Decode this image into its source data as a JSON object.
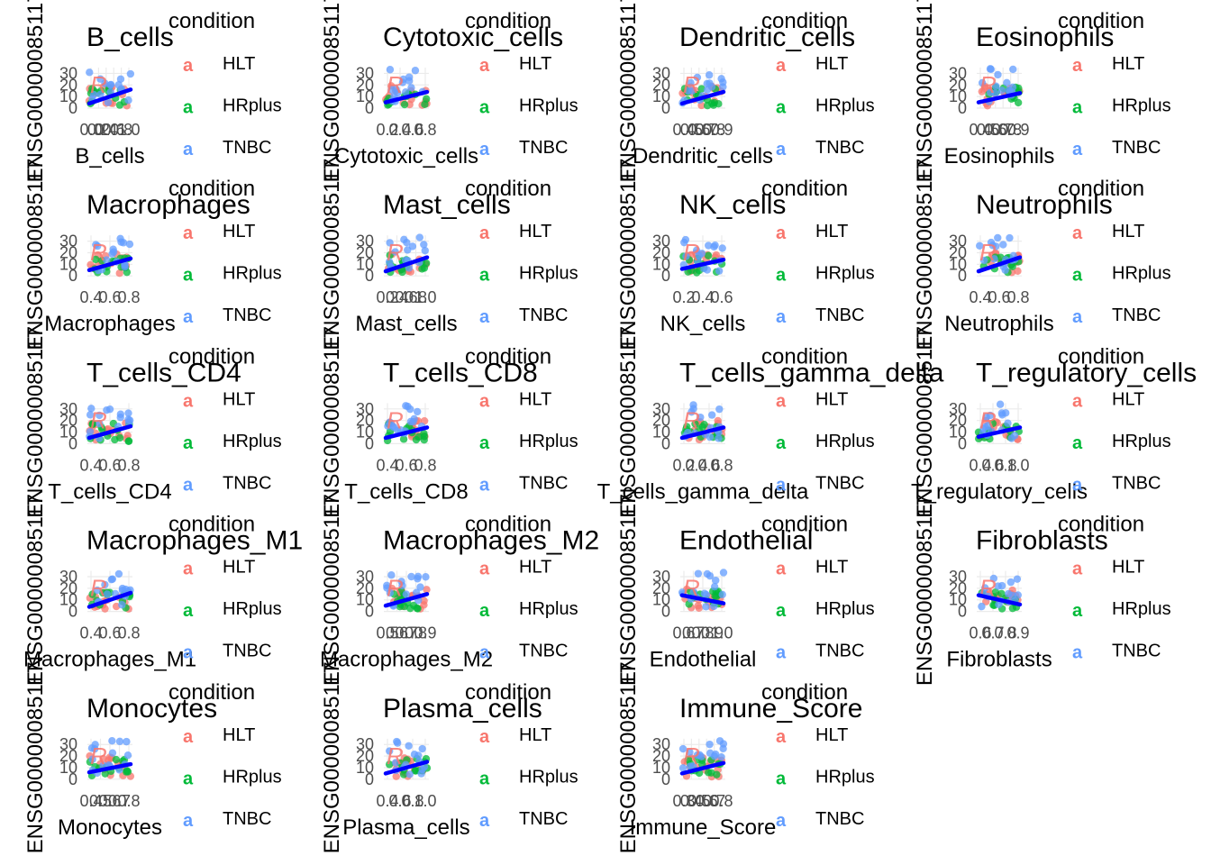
{
  "figure": {
    "colors": {
      "HLT": "#F8766D",
      "HRplus": "#00BA38",
      "TNBC": "#619CFF",
      "fit": "#0000FF",
      "grid": "#EBEBEB",
      "tick": "#4D4D4D"
    },
    "y_axis_label": "ENSG00000085117",
    "legend": {
      "title": "condition",
      "key_glyph": "a",
      "entries": [
        "HLT",
        "HRplus",
        "TNBC"
      ]
    }
  },
  "chart_data": [
    {
      "type": "scatter",
      "title": "B_cells",
      "xlabel": "B_cells",
      "ylabel": "ENSG00000085117",
      "x_tick_labels": [
        "0.0",
        "0.2",
        "0.4",
        "0.6",
        "0.8",
        "1.0"
      ],
      "ylim": [
        0,
        35
      ],
      "y_ticks": [
        0,
        10,
        20,
        30
      ],
      "fit": [
        4,
        16
      ]
    },
    {
      "type": "scatter",
      "title": "Cytotoxic_cells",
      "xlabel": "Cytotoxic_cells",
      "ylabel": "ENSG00000085117",
      "x_tick_labels": [
        "0.2",
        "0.4",
        "0.6",
        "0.8"
      ],
      "ylim": [
        0,
        35
      ],
      "y_ticks": [
        0,
        10,
        20,
        30
      ],
      "fit": [
        5,
        14
      ]
    },
    {
      "type": "scatter",
      "title": "Dendritic_cells",
      "xlabel": "Dendritic_cells",
      "ylabel": "ENSG00000085117",
      "x_tick_labels": [
        "0.4",
        "0.5",
        "0.6",
        "0.7",
        "0.8",
        "0.9"
      ],
      "ylim": [
        0,
        35
      ],
      "y_ticks": [
        0,
        10,
        20,
        30
      ],
      "fit": [
        4,
        14
      ]
    },
    {
      "type": "scatter",
      "title": "Eosinophils",
      "xlabel": "Eosinophils",
      "ylabel": "ENSG00000085117",
      "x_tick_labels": [
        "0.4",
        "0.5",
        "0.6",
        "0.7",
        "0.8",
        "0.9"
      ],
      "ylim": [
        0,
        35
      ],
      "y_ticks": [
        0,
        10,
        20,
        30
      ],
      "fit": [
        5,
        13
      ]
    },
    {
      "type": "scatter",
      "title": "Macrophages",
      "xlabel": "Macrophages",
      "ylabel": "ENSG00000085117",
      "x_tick_labels": [
        "0.4",
        "0.6",
        "0.8"
      ],
      "ylim": [
        0,
        35
      ],
      "y_ticks": [
        0,
        10,
        20,
        30
      ],
      "fit": [
        5,
        15
      ]
    },
    {
      "type": "scatter",
      "title": "Mast_cells",
      "xlabel": "Mast_cells",
      "ylabel": "ENSG00000085117",
      "x_tick_labels": [
        "0.2",
        "0.4",
        "0.6",
        "0.8",
        "1.0"
      ],
      "ylim": [
        0,
        35
      ],
      "y_ticks": [
        0,
        10,
        20,
        30
      ],
      "fit": [
        4,
        16
      ]
    },
    {
      "type": "scatter",
      "title": "NK_cells",
      "xlabel": "NK_cells",
      "ylabel": "ENSG00000085117",
      "x_tick_labels": [
        "0.2",
        "0.4",
        "0.6"
      ],
      "ylim": [
        0,
        35
      ],
      "y_ticks": [
        0,
        10,
        20,
        30
      ],
      "fit": [
        6,
        14
      ]
    },
    {
      "type": "scatter",
      "title": "Neutrophils",
      "xlabel": "Neutrophils",
      "ylabel": "ENSG00000085117",
      "x_tick_labels": [
        "0.4",
        "0.6",
        "0.8"
      ],
      "ylim": [
        0,
        35
      ],
      "y_ticks": [
        0,
        10,
        20,
        30
      ],
      "fit": [
        4,
        16
      ]
    },
    {
      "type": "scatter",
      "title": "T_cells_CD4",
      "xlabel": "T_cells_CD4",
      "ylabel": "ENSG00000085117",
      "x_tick_labels": [
        "0.4",
        "0.6",
        "0.8"
      ],
      "ylim": [
        0,
        35
      ],
      "y_ticks": [
        0,
        10,
        20,
        30
      ],
      "fit": [
        5,
        15
      ]
    },
    {
      "type": "scatter",
      "title": "T_cells_CD8",
      "xlabel": "T_cells_CD8",
      "ylabel": "ENSG00000085117",
      "x_tick_labels": [
        "0.4",
        "0.6",
        "0.8"
      ],
      "ylim": [
        0,
        35
      ],
      "y_ticks": [
        0,
        10,
        20,
        30
      ],
      "fit": [
        5,
        14
      ]
    },
    {
      "type": "scatter",
      "title": "T_cells_gamma_delta",
      "xlabel": "T_cells_gamma_delta",
      "ylabel": "ENSG00000085117",
      "x_tick_labels": [
        "0.2",
        "0.4",
        "0.6",
        "0.8"
      ],
      "ylim": [
        0,
        35
      ],
      "y_ticks": [
        0,
        10,
        20,
        30
      ],
      "fit": [
        5,
        14
      ]
    },
    {
      "type": "scatter",
      "title": "T_regulatory_cells",
      "xlabel": "T_regulatory_cells",
      "ylabel": "ENSG00000085117",
      "x_tick_labels": [
        "0.4",
        "0.6",
        "0.8",
        "1.0"
      ],
      "ylim": [
        0,
        35
      ],
      "y_ticks": [
        0,
        10,
        20,
        30
      ],
      "fit": [
        6,
        14
      ]
    },
    {
      "type": "scatter",
      "title": "Macrophages_M1",
      "xlabel": "Macrophages_M1",
      "ylabel": "ENSG00000085117",
      "x_tick_labels": [
        "0.4",
        "0.6",
        "0.8"
      ],
      "ylim": [
        0,
        35
      ],
      "y_ticks": [
        0,
        10,
        20,
        30
      ],
      "fit": [
        4,
        16
      ]
    },
    {
      "type": "scatter",
      "title": "Macrophages_M2",
      "xlabel": "Macrophages_M2",
      "ylabel": "ENSG00000085117",
      "x_tick_labels": [
        "0.5",
        "0.6",
        "0.7",
        "0.8",
        "0.9"
      ],
      "ylim": [
        0,
        35
      ],
      "y_ticks": [
        0,
        10,
        20,
        30
      ],
      "fit": [
        5,
        15
      ]
    },
    {
      "type": "scatter",
      "title": "Endothelial",
      "xlabel": "Endothelial",
      "ylabel": "ENSG00000085117",
      "x_tick_labels": [
        "0.6",
        "0.7",
        "0.8",
        "0.9",
        "1.0"
      ],
      "ylim": [
        0,
        35
      ],
      "y_ticks": [
        0,
        10,
        20,
        30
      ],
      "fit": [
        14,
        7
      ]
    },
    {
      "type": "scatter",
      "title": "Fibroblasts",
      "xlabel": "Fibroblasts",
      "ylabel": "ENSG00000085117",
      "x_tick_labels": [
        "0.6",
        "0.7",
        "0.8",
        "0.9"
      ],
      "ylim": [
        0,
        35
      ],
      "y_ticks": [
        0,
        10,
        20,
        30
      ],
      "fit": [
        14,
        6
      ]
    },
    {
      "type": "scatter",
      "title": "Monocytes",
      "xlabel": "Monocytes",
      "ylabel": "ENSG00000085117",
      "x_tick_labels": [
        "0.4",
        "0.5",
        "0.6",
        "0.7",
        "0.8"
      ],
      "ylim": [
        0,
        35
      ],
      "y_ticks": [
        0,
        10,
        20,
        30
      ],
      "fit": [
        6,
        13
      ]
    },
    {
      "type": "scatter",
      "title": "Plasma_cells",
      "xlabel": "Plasma_cells",
      "ylabel": "ENSG00000085117",
      "x_tick_labels": [
        "0.4",
        "0.6",
        "0.8",
        "1.0"
      ],
      "ylim": [
        0,
        35
      ],
      "y_ticks": [
        0,
        10,
        20,
        30
      ],
      "fit": [
        5,
        15
      ]
    },
    {
      "type": "scatter",
      "title": "Immune_Score",
      "xlabel": "Immune_Score",
      "ylabel": "ENSG00000085117",
      "x_tick_labels": [
        "0.3",
        "0.4",
        "0.5",
        "0.6",
        "0.7",
        "0.8"
      ],
      "ylim": [
        0,
        35
      ],
      "y_ticks": [
        0,
        10,
        20,
        30
      ],
      "fit": [
        5,
        14
      ]
    }
  ]
}
